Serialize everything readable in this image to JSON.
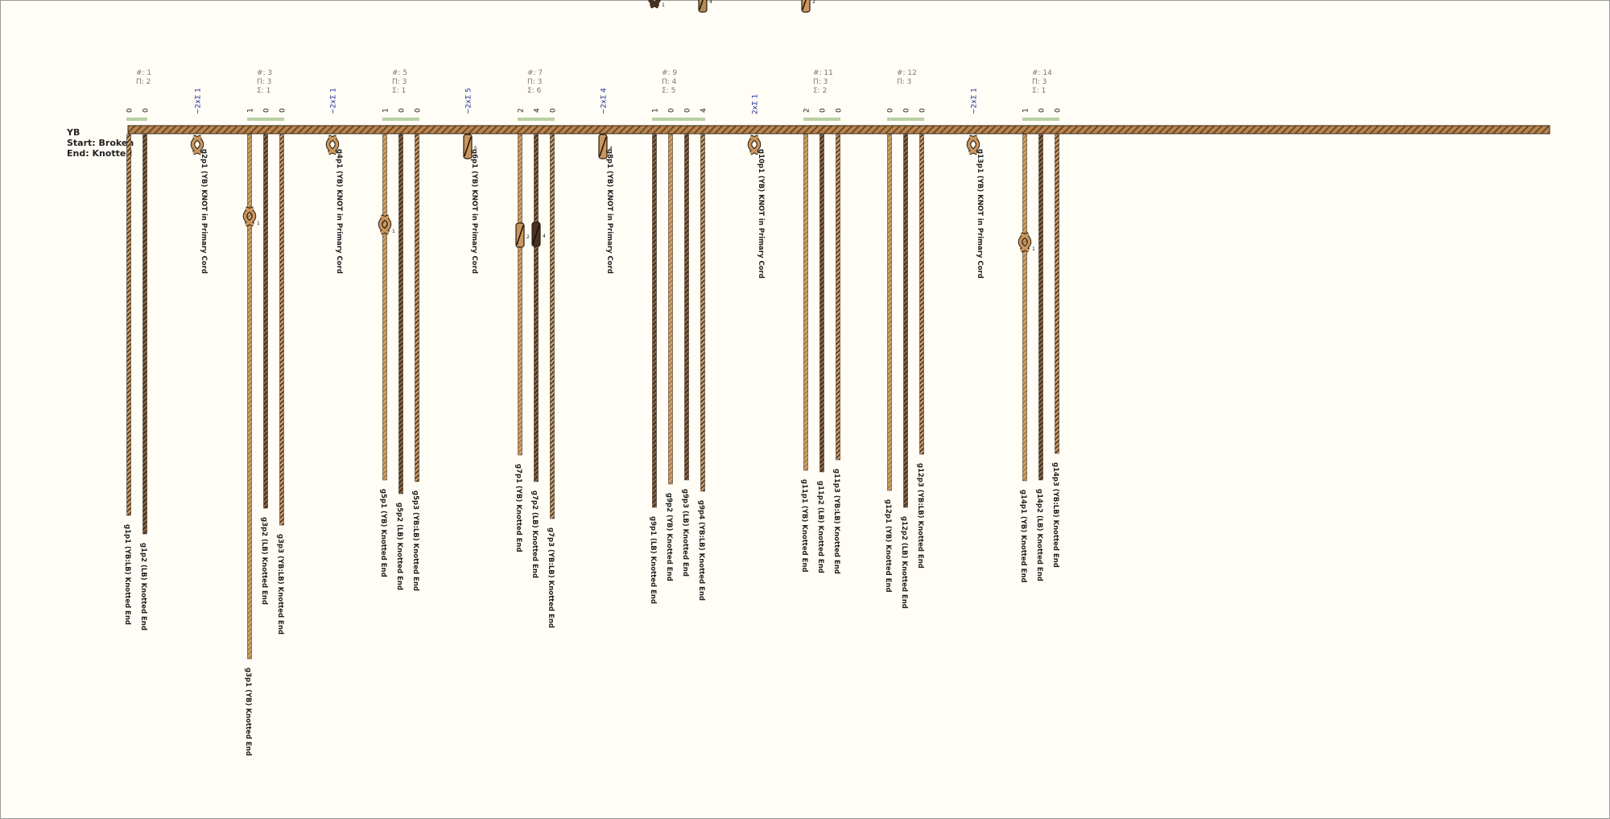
{
  "khipu": {
    "name": "YB",
    "start_label": "Start: Broken",
    "end_label": "End: Knotted"
  },
  "colors": {
    "YB": "#c9975e",
    "LB": "#4a3220",
    "YB_LB": "#b58a55",
    "primary": "#b9854f",
    "marker": "#b9cfa4",
    "stats": "#777777",
    "sum_label": "#1f2a9a",
    "text": "#1f1f1f"
  },
  "groups": [
    {
      "id": 1,
      "stats": [
        "#: 1",
        "Π: 2"
      ],
      "values": [
        "0",
        "0"
      ]
    },
    {
      "id": 3,
      "stats": [
        "#: 3",
        "Π: 3",
        "Σ: 1"
      ],
      "values": [
        "1",
        "0",
        "0"
      ]
    },
    {
      "id": 5,
      "stats": [
        "#: 5",
        "Π: 3",
        "Σ: 1"
      ],
      "values": [
        "1",
        "0",
        "0"
      ]
    },
    {
      "id": 7,
      "stats": [
        "#: 7",
        "Π: 3",
        "Σ: 6"
      ],
      "values": [
        "2",
        "4",
        "0"
      ]
    },
    {
      "id": 9,
      "stats": [
        "#: 9",
        "Π: 4",
        "Σ: 5"
      ],
      "values": [
        "1",
        "0",
        "0",
        "4"
      ]
    },
    {
      "id": 11,
      "stats": [
        "#: 11",
        "Π: 3",
        "Σ: 2"
      ],
      "values": [
        "2",
        "0",
        "0"
      ]
    },
    {
      "id": 12,
      "stats": [
        "#: 12",
        "Π: 3"
      ],
      "values": [
        "0",
        "0",
        "0"
      ]
    },
    {
      "id": 14,
      "stats": [
        "#: 14",
        "Π: 3",
        "Σ: 1"
      ],
      "values": [
        "1",
        "0",
        "0"
      ]
    }
  ],
  "sum_labels": [
    "~2xΣ 1",
    "~2xΣ 1",
    "~2xΣ 5",
    "~2xΣ 4",
    "2xΣ 1",
    "~2xΣ 1"
  ],
  "single_knots": [
    {
      "label": "g2p1 (YB) KNOT in Primary Cord",
      "knot": "figure8",
      "count": "1"
    },
    {
      "label": "g4p1 (YB) KNOT in Primary Cord",
      "knot": "figure8",
      "count": "1"
    },
    {
      "label": "g6p1 (YB) KNOT in Primary Cord",
      "knot": "long",
      "count": "5"
    },
    {
      "label": "g8p1 (YB) KNOT in Primary Cord",
      "knot": "long",
      "count": "4"
    },
    {
      "label": "g10p1 (YB) KNOT in Primary Cord",
      "knot": "figure8",
      "count": "1"
    },
    {
      "label": "g13p1 (YB) KNOT in Primary Cord",
      "knot": "figure8",
      "count": "1"
    }
  ],
  "pendants": [
    {
      "label": "g1p1 (YB:LB) Knotted End",
      "color": "YB_LB",
      "value": 0
    },
    {
      "label": "g1p2 (LB) Knotted End",
      "color": "LB",
      "value": 0
    },
    {
      "label": "g3p1 (YB) Knotted End",
      "color": "YB",
      "value": 1,
      "knot": "figure8",
      "count": "1"
    },
    {
      "label": "g3p2 (LB) Knotted End",
      "color": "LB",
      "value": 0
    },
    {
      "label": "g3p3 (YB:LB) Knotted End",
      "color": "YB_LB",
      "value": 0
    },
    {
      "label": "g5p1 (YB) Knotted End",
      "color": "YB",
      "value": 1,
      "knot": "figure8",
      "count": "1"
    },
    {
      "label": "g5p2 (LB) Knotted End",
      "color": "LB",
      "value": 0
    },
    {
      "label": "g5p3 (YB:LB) Knotted End",
      "color": "YB_LB",
      "value": 0
    },
    {
      "label": "g7p1 (YB) Knotted End",
      "color": "YB",
      "value": 2,
      "knot": "long",
      "count": "2"
    },
    {
      "label": "g7p2 (LB) Knotted End",
      "color": "LB",
      "value": 4,
      "knot": "long",
      "count": "4"
    },
    {
      "label": "g7p3 (YB:LB) Knotted End",
      "color": "YB_LB",
      "value": 0
    },
    {
      "label": "g9p1 (LB) Knotted End",
      "color": "LB",
      "value": 1,
      "knot": "figure8",
      "count": "1"
    },
    {
      "label": "g9p2 (YB) Knotted End",
      "color": "YB",
      "value": 0
    },
    {
      "label": "g9p3 (LB) Knotted End",
      "color": "LB",
      "value": 0
    },
    {
      "label": "g9p4 (YB:LB) Knotted End",
      "color": "YB_LB",
      "value": 4,
      "knot": "long",
      "count": "4"
    },
    {
      "label": "g11p1 (YB) Knotted End",
      "color": "YB",
      "value": 2,
      "knot": "long",
      "count": "2"
    },
    {
      "label": "g11p2 (LB) Knotted End",
      "color": "LB",
      "value": 0
    },
    {
      "label": "g11p3 (YB:LB) Knotted End",
      "color": "YB_LB",
      "value": 0
    },
    {
      "label": "g12p1 (YB) Knotted End",
      "color": "YB",
      "value": 0
    },
    {
      "label": "g12p2 (LB) Knotted End",
      "color": "LB",
      "value": 0
    },
    {
      "label": "g12p3 (YB:LB) Knotted End",
      "color": "YB_LB",
      "value": 0
    },
    {
      "label": "g14p1 (YB) Knotted End",
      "color": "YB",
      "value": 1,
      "knot": "figure8",
      "count": "1"
    },
    {
      "label": "g14p2 (LB) Knotted End",
      "color": "LB",
      "value": 0
    },
    {
      "label": "g14p3 (YB:LB) Knotted End",
      "color": "YB_LB",
      "value": 0
    }
  ]
}
